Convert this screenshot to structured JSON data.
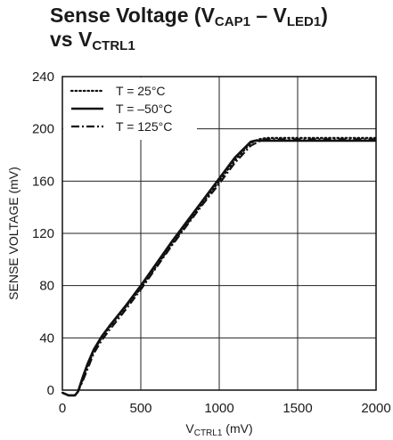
{
  "chart_data": {
    "type": "line",
    "title": {
      "line1_pre": "Sense Voltage (V",
      "line1_sub1": "CAP1",
      "line1_mid": " – V",
      "line1_sub2": "LED1",
      "line1_post": ")",
      "line2_pre": "vs V",
      "line2_sub": "CTRL1"
    },
    "xlabel": {
      "pre": "V",
      "sub": "CTRL1",
      "post": " (mV)"
    },
    "ylabel": "SENSE VOLTAGE (mV)",
    "xlim": [
      0,
      2000
    ],
    "ylim": [
      0,
      240
    ],
    "xticks": [
      "0",
      "500",
      "1000",
      "1500",
      "2000"
    ],
    "yticks": [
      "0",
      "40",
      "80",
      "120",
      "160",
      "200",
      "240"
    ],
    "grid": true,
    "legend_position": "top-left",
    "series": [
      {
        "name": "T = 25°C",
        "style": "dotted",
        "x": [
          0,
          40,
          80,
          100,
          130,
          160,
          200,
          250,
          300,
          400,
          500,
          600,
          700,
          800,
          900,
          1000,
          1100,
          1200,
          1250,
          1300,
          1400,
          1500,
          1600,
          1700,
          1800,
          1900,
          2000
        ],
        "y": [
          -2,
          -4,
          -4,
          -1,
          8,
          18,
          30,
          40,
          48,
          63,
          78,
          95,
          112,
          128,
          144,
          160,
          176,
          189,
          192,
          193,
          193,
          193,
          193,
          193,
          193,
          193,
          193
        ]
      },
      {
        "name": "T = –50°C",
        "style": "solid",
        "x": [
          0,
          40,
          80,
          100,
          130,
          160,
          200,
          250,
          300,
          400,
          500,
          600,
          700,
          800,
          900,
          1000,
          1100,
          1200,
          1230,
          1300,
          1400,
          1500,
          1600,
          1700,
          1800,
          1900,
          2000
        ],
        "y": [
          -2,
          -4,
          -4,
          -1,
          10,
          20,
          31,
          41,
          49,
          64,
          80,
          97,
          114,
          130,
          146,
          162,
          178,
          190,
          191,
          191,
          191,
          191,
          191,
          191,
          191,
          191,
          191
        ]
      },
      {
        "name": "T = 125°C",
        "style": "dashdot",
        "x": [
          0,
          40,
          80,
          100,
          130,
          160,
          200,
          250,
          300,
          400,
          500,
          600,
          700,
          800,
          900,
          1000,
          1100,
          1200,
          1280,
          1300,
          1400,
          1500,
          1600,
          1700,
          1800,
          1900,
          2000
        ],
        "y": [
          -2,
          -4,
          -4,
          -1,
          7,
          16,
          28,
          38,
          46,
          61,
          77,
          94,
          111,
          127,
          143,
          158,
          174,
          187,
          192,
          192,
          192,
          192,
          192,
          192,
          192,
          192,
          192
        ]
      }
    ]
  }
}
